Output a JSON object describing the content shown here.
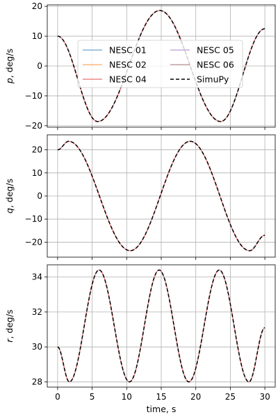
{
  "chart_data": [
    {
      "type": "line",
      "title": "",
      "ylabel_var": "p",
      "ylabel_unit": ", deg/s",
      "xlabel": "",
      "xlim": [
        -1.5,
        31.5
      ],
      "ylim": [
        -20.5,
        20.5
      ],
      "yticks": [
        -20,
        -10,
        0,
        10,
        20
      ],
      "xticks": [
        0,
        5,
        10,
        15,
        20,
        25,
        30
      ],
      "show_xtick_labels": false,
      "grid": true,
      "legend": "upper-center",
      "curve": {
        "x": [
          0,
          5.8,
          14.8,
          23.6,
          30
        ],
        "y": [
          10,
          -18.6,
          18.6,
          -18.6,
          12.5
        ]
      },
      "series": [
        {
          "name": "NESC 01",
          "color": "#1f77b4"
        },
        {
          "name": "NESC 02",
          "color": "#ff7f0e"
        },
        {
          "name": "NESC 04",
          "color": "#d62728"
        },
        {
          "name": "NESC 05",
          "color": "#9467bd"
        },
        {
          "name": "NESC 06",
          "color": "#8c564b"
        },
        {
          "name": "SimuPy",
          "color": "#000000",
          "dashed": true
        }
      ]
    },
    {
      "type": "line",
      "title": "",
      "ylabel_var": "q",
      "ylabel_unit": ", deg/s",
      "xlabel": "",
      "xlim": [
        -1.5,
        31.5
      ],
      "ylim": [
        -26.5,
        26.5
      ],
      "yticks": [
        -20,
        -10,
        0,
        10,
        20
      ],
      "xticks": [
        0,
        5,
        10,
        15,
        20,
        25,
        30
      ],
      "show_xtick_labels": false,
      "grid": true,
      "curve": {
        "x": [
          0,
          1.6,
          10.5,
          19.2,
          27.8,
          30
        ],
        "y": [
          20,
          23.7,
          -23.7,
          23.7,
          -23.7,
          -17
        ]
      }
    },
    {
      "type": "line",
      "title": "",
      "ylabel_var": "r",
      "ylabel_unit": ", deg/s",
      "xlabel": "time, s",
      "xlim": [
        -1.5,
        31.5
      ],
      "ylim": [
        27.7,
        34.7
      ],
      "yticks": [
        28,
        30,
        32,
        34
      ],
      "xticks": [
        0,
        5,
        10,
        15,
        20,
        25,
        30
      ],
      "show_xtick_labels": true,
      "grid": true,
      "curve": {
        "x": [
          0,
          1.7,
          6.0,
          10.4,
          14.7,
          19.0,
          23.4,
          27.7,
          30
        ],
        "y": [
          30,
          28.0,
          34.4,
          28.0,
          34.4,
          28.0,
          34.4,
          28.0,
          31.1
        ]
      }
    }
  ]
}
